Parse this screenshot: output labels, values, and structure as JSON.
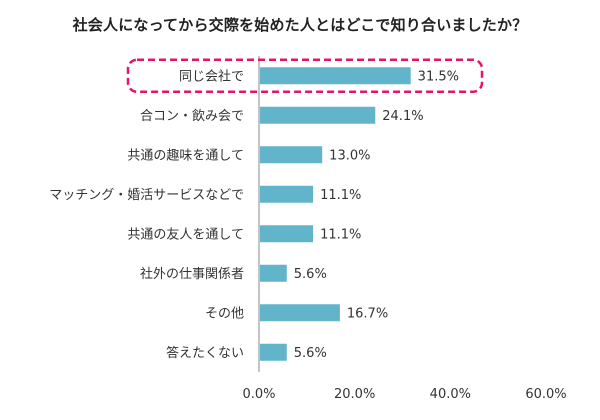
{
  "chart_data": {
    "type": "bar",
    "orientation": "horizontal",
    "title": "社会人になってから交際を始めた人とはどこで知り合いましたか？",
    "categories": [
      "同じ会社で",
      "合コン・飲み会で",
      "共通の趣味を通して",
      "マッチング・婚活サービスなどで",
      "共通の友人を通して",
      "社外の仕事関係者",
      "その他",
      "答えたくない"
    ],
    "values": [
      31.5,
      24.1,
      13.0,
      11.1,
      11.1,
      5.6,
      16.7,
      5.6
    ],
    "value_labels": [
      "31.5%",
      "24.1%",
      "13.0%",
      "11.1%",
      "11.1%",
      "5.6%",
      "16.7%",
      "5.6%"
    ],
    "xlim": [
      0,
      60
    ],
    "x_ticks": [
      "0.0%",
      "20.0%",
      "40.0%",
      "60.0%"
    ],
    "xlabel": "",
    "ylabel": "",
    "grid": false,
    "bar_color": "#62b4ca",
    "highlight": {
      "category": "同じ会社で",
      "style": "dashed-rounded-box",
      "color": "#e0156e"
    }
  }
}
